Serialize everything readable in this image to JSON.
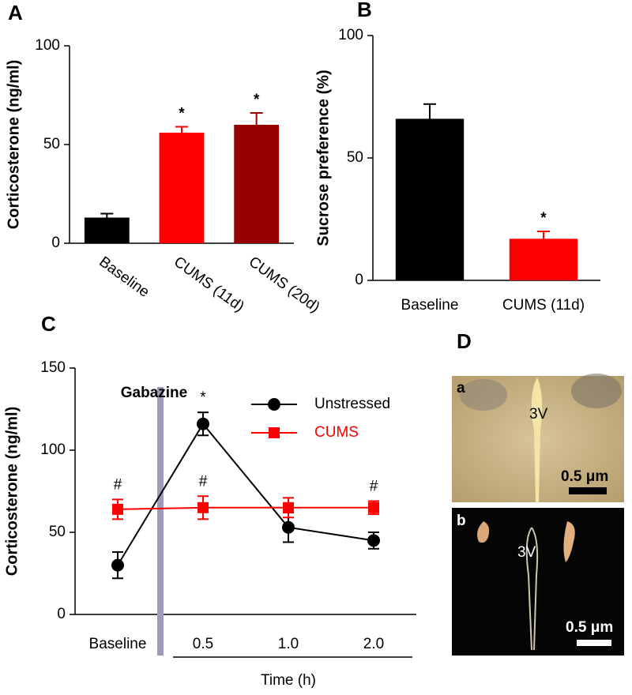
{
  "chart_data": [
    {
      "type": "bar",
      "panel_label": "A",
      "ylabel": "Corticosterone (ng/ml)",
      "categories": [
        "Baseline",
        "CUMS (11d)",
        "CUMS (20d)"
      ],
      "values": [
        13,
        56,
        60
      ],
      "errors": [
        2,
        3,
        6
      ],
      "colors": [
        "#000000",
        "#ff0000",
        "#990000"
      ],
      "significance": [
        null,
        "*",
        "*"
      ],
      "ylim": [
        0,
        100
      ],
      "yticks": [
        0,
        50,
        100
      ],
      "rotate_labels": true
    },
    {
      "type": "bar",
      "panel_label": "B",
      "ylabel": "Sucrose preference (%)",
      "categories": [
        "Baseline",
        "CUMS (11d)"
      ],
      "values": [
        66,
        17
      ],
      "errors": [
        6,
        3
      ],
      "colors": [
        "#000000",
        "#ff0000"
      ],
      "significance": [
        null,
        "*"
      ],
      "ylim": [
        0,
        100
      ],
      "yticks": [
        0,
        50,
        100
      ],
      "rotate_labels": false
    },
    {
      "type": "line",
      "panel_label": "C",
      "ylabel": "Corticosterone (ng/ml)",
      "xlabel": "Time (h)",
      "annotation": "Gabazine",
      "categories": [
        "Baseline",
        "0.5",
        "1.0",
        "2.0"
      ],
      "series": [
        {
          "name": "Unstressed",
          "color": "#000000",
          "marker": "circle",
          "values": [
            30,
            116,
            53,
            45
          ],
          "errors": [
            8,
            7,
            9,
            5
          ],
          "markers": [
            null,
            "*",
            null,
            null
          ]
        },
        {
          "name": "CUMS",
          "color": "#ff0000",
          "marker": "square",
          "values": [
            64,
            65,
            65,
            65
          ],
          "errors": [
            6,
            7,
            6,
            4
          ],
          "markers": [
            "#",
            "#",
            null,
            "#"
          ]
        }
      ],
      "ylim": [
        0,
        150
      ],
      "yticks": [
        0,
        50,
        100,
        150
      ]
    }
  ],
  "image_panel": {
    "label": "D",
    "images": [
      {
        "label": "a",
        "annotation": "3V",
        "scale_bar": "0.5 μm"
      },
      {
        "label": "b",
        "annotation": "3V",
        "scale_bar": "0.5 μm"
      }
    ]
  }
}
